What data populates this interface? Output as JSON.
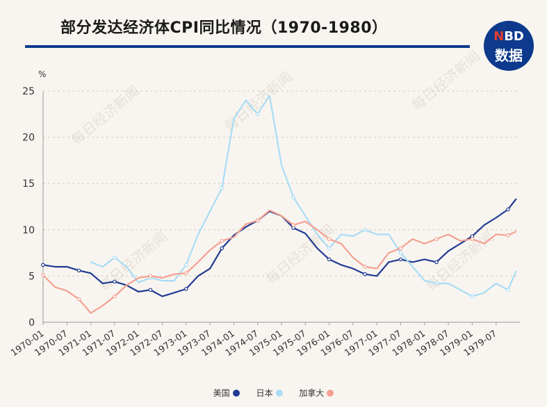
{
  "header": {
    "title": "部分发达经济体CPI同比情况（1970-1980）",
    "logo_top": "NBD",
    "logo_bottom": "数据"
  },
  "watermark_text": "每日经济新闻",
  "chart_data": {
    "type": "line",
    "ylabel": "%",
    "ylim": [
      0,
      25
    ],
    "yticks": [
      0,
      5,
      10,
      15,
      20,
      25
    ],
    "grid": "horizontal dashed",
    "legend_position": "bottom-center",
    "xticks": [
      "1970-01",
      "1970-07",
      "1971-01",
      "1971-07",
      "1972-01",
      "1972-07",
      "1973-01",
      "1973-07",
      "1974-01",
      "1974-07",
      "1975-01",
      "1975-07",
      "1976-01",
      "1976-07",
      "1977-01",
      "1977-07",
      "1978-01",
      "1978-07",
      "1979-01",
      "1979-07"
    ],
    "x": [
      "1970-01",
      "1970-04",
      "1970-07",
      "1970-10",
      "1971-01",
      "1971-04",
      "1971-07",
      "1971-10",
      "1972-01",
      "1972-04",
      "1972-07",
      "1972-10",
      "1973-01",
      "1973-04",
      "1973-07",
      "1973-10",
      "1974-01",
      "1974-04",
      "1974-07",
      "1974-10",
      "1975-01",
      "1975-04",
      "1975-07",
      "1975-10",
      "1976-01",
      "1976-04",
      "1976-07",
      "1976-10",
      "1977-01",
      "1977-04",
      "1977-07",
      "1977-10",
      "1978-01",
      "1978-04",
      "1978-07",
      "1978-10",
      "1979-01",
      "1979-04",
      "1979-07",
      "1979-10",
      "1979-12"
    ],
    "series": [
      {
        "name": "美国",
        "color": "#1f3a93",
        "values": [
          6.2,
          6.0,
          6.0,
          5.6,
          5.3,
          4.2,
          4.4,
          4.0,
          3.3,
          3.5,
          2.8,
          3.2,
          3.6,
          5.0,
          5.8,
          8.0,
          9.4,
          10.3,
          11.0,
          12.0,
          11.5,
          10.2,
          9.6,
          8.0,
          6.8,
          6.2,
          5.8,
          5.2,
          5.0,
          6.5,
          6.8,
          6.5,
          6.8,
          6.5,
          7.7,
          8.5,
          9.3,
          10.5,
          11.3,
          12.2,
          13.3
        ]
      },
      {
        "name": "日本",
        "color": "#a9dcf5",
        "values": [
          null,
          null,
          null,
          null,
          6.5,
          6.0,
          7.0,
          6.0,
          4.3,
          4.8,
          4.5,
          4.5,
          6.2,
          9.5,
          12.0,
          14.5,
          22.0,
          24.0,
          22.5,
          24.5,
          17.0,
          13.5,
          11.5,
          9.5,
          8.0,
          9.5,
          9.3,
          10.0,
          9.5,
          9.5,
          7.5,
          6.0,
          4.5,
          4.2,
          4.2,
          3.5,
          2.8,
          3.2,
          4.2,
          3.5,
          5.5
        ]
      },
      {
        "name": "加拿大",
        "color": "#f4a090",
        "values": [
          5.1,
          3.8,
          3.4,
          2.5,
          1.0,
          1.8,
          2.8,
          4.0,
          4.8,
          5.0,
          4.8,
          5.2,
          5.3,
          6.5,
          7.8,
          8.8,
          9.2,
          10.6,
          11.0,
          12.1,
          11.5,
          10.5,
          10.9,
          10.0,
          9.0,
          8.5,
          7.0,
          6.0,
          5.8,
          7.5,
          8.0,
          9.0,
          8.5,
          9.0,
          9.5,
          8.8,
          9.0,
          8.5,
          9.5,
          9.4,
          9.8
        ]
      }
    ]
  }
}
